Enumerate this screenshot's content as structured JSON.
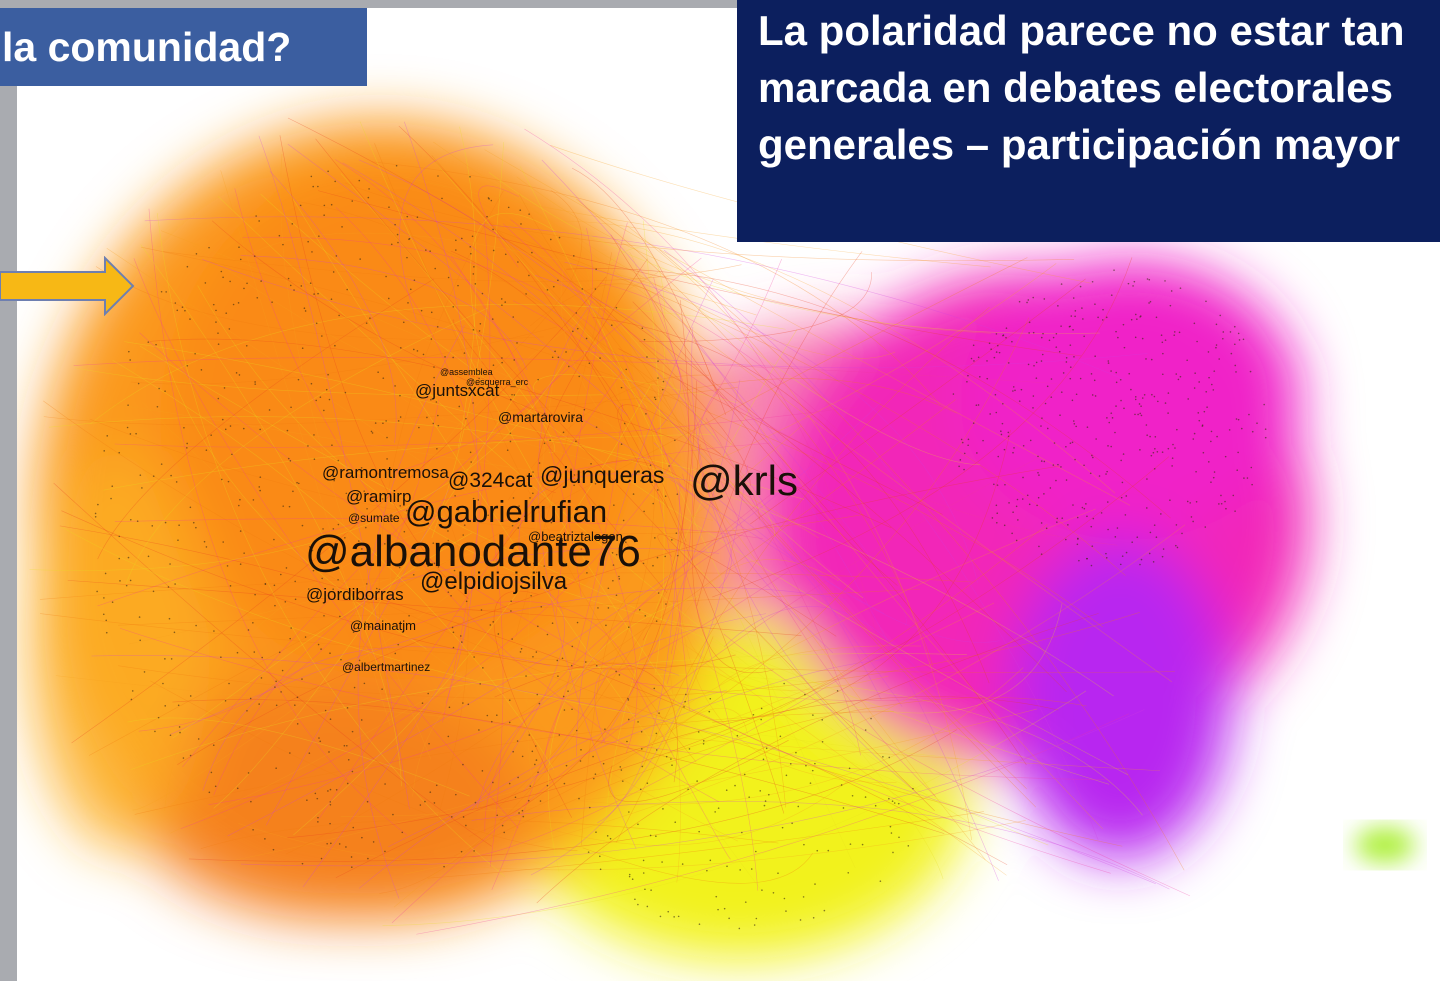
{
  "header": {
    "title": "la comunidad?"
  },
  "callout": {
    "text": "La polaridad parece no estar tan marcada en debates electorales generales – participación mayor"
  },
  "nodes": [
    {
      "label": "@assemblea"
    },
    {
      "label": "@esquerra_erc"
    },
    {
      "label": "@juntsxcat"
    },
    {
      "label": "@martarovira"
    },
    {
      "label": "@ramontremosa"
    },
    {
      "label": "@324cat"
    },
    {
      "label": "@junqueras"
    },
    {
      "label": "@krls"
    },
    {
      "label": "@ramirp"
    },
    {
      "label": "@sumate"
    },
    {
      "label": "@gabrielrufian"
    },
    {
      "label": "@beatriztalegon"
    },
    {
      "label": "@albanodante76"
    },
    {
      "label": "@elpidiojsilva"
    },
    {
      "label": "@jordiborras"
    },
    {
      "label": "@mainatjm"
    },
    {
      "label": "@albertmartinez"
    }
  ]
}
